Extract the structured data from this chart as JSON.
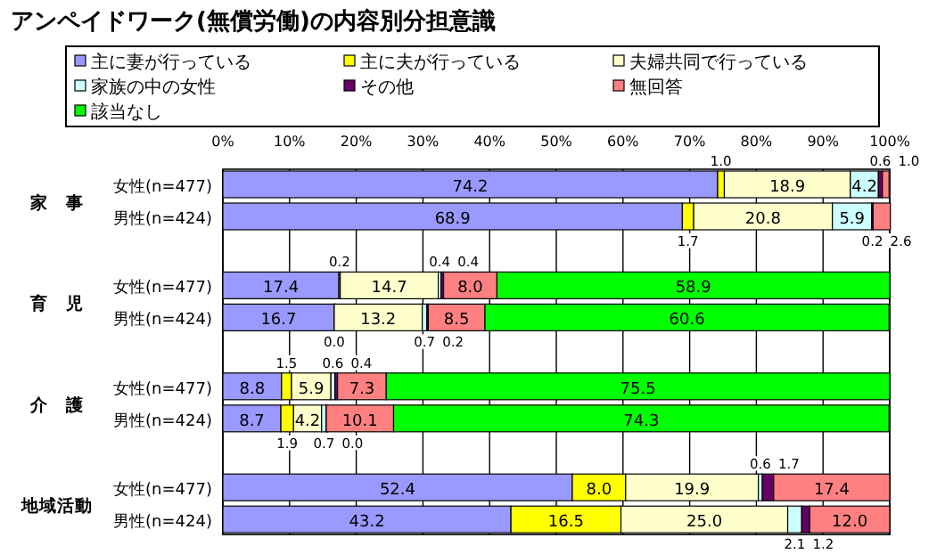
{
  "chart_data": {
    "type": "bar",
    "orientation": "horizontal",
    "stacked": true,
    "title": "アンペイドワーク(無償労働)の内容別分担意識",
    "categories": [
      "女性(n=477)",
      "男性(n=424)",
      "女性(n=477)",
      "男性(n=424)",
      "女性(n=477)",
      "男性(n=424)",
      "女性(n=477)",
      "男性(n=424)"
    ],
    "annotations": [
      "家　事",
      "育　児",
      "介　護",
      "地域活動"
    ],
    "xlim": [
      0,
      100
    ],
    "xticks": [
      {
        "value": 0,
        "label": "0%"
      },
      {
        "value": 10,
        "label": "10%"
      },
      {
        "value": 20,
        "label": "20%"
      },
      {
        "value": 30,
        "label": "30%"
      },
      {
        "value": 40,
        "label": "40%"
      },
      {
        "value": 50,
        "label": "50%"
      },
      {
        "value": 60,
        "label": "60%"
      },
      {
        "value": 70,
        "label": "70%"
      },
      {
        "value": 80,
        "label": "80%"
      },
      {
        "value": 90,
        "label": "90%"
      },
      {
        "value": 100,
        "label": "100%"
      }
    ],
    "grid": "x",
    "legend": "top",
    "series": [
      {
        "name": "主に妻が行っている",
        "color": "#9999ff",
        "values": [
          74.2,
          68.9,
          17.4,
          16.7,
          8.8,
          8.7,
          52.4,
          43.2
        ],
        "value_labels": [
          "74.2",
          "68.9",
          "17.4",
          "16.7",
          "8.8",
          "8.7",
          "52.4",
          "43.2"
        ]
      },
      {
        "name": "主に夫が行っている",
        "color": "#ffff00",
        "values": [
          1.0,
          1.7,
          0.2,
          0.0,
          1.5,
          1.9,
          8.0,
          16.5
        ],
        "value_labels": [
          "1.0",
          "1.7",
          "0.2",
          "0.0",
          "1.5",
          "1.9",
          "8.0",
          "16.5"
        ]
      },
      {
        "name": "夫婦共同で行っている",
        "color": "#ffffcc",
        "values": [
          18.9,
          20.8,
          14.7,
          13.2,
          5.9,
          4.2,
          19.9,
          25.0
        ],
        "value_labels": [
          "18.9",
          "20.8",
          "14.7",
          "13.2",
          "5.9",
          "4.2",
          "19.9",
          "25.0"
        ]
      },
      {
        "name": "家族の中の女性",
        "color": "#ccffff",
        "values": [
          4.2,
          5.9,
          0.4,
          0.7,
          0.6,
          0.7,
          0.6,
          2.1
        ],
        "value_labels": [
          "4.2",
          "5.9",
          "0.4",
          "0.7",
          "0.6",
          "0.7",
          "0.6",
          "2.1"
        ]
      },
      {
        "name": "その他",
        "color": "#660066",
        "values": [
          0.6,
          0.2,
          0.4,
          0.2,
          0.4,
          0.0,
          1.7,
          1.2
        ],
        "value_labels": [
          "0.6",
          "0.2",
          "0.4",
          "0.2",
          "0.4",
          "0.0",
          "1.7",
          "1.2"
        ]
      },
      {
        "name": "無回答",
        "color": "#ff8080",
        "values": [
          1.0,
          2.6,
          8.0,
          8.5,
          7.3,
          10.1,
          17.4,
          12.0
        ],
        "value_labels": [
          "1.0",
          "2.6",
          "8.0",
          "8.5",
          "7.3",
          "10.1",
          "17.4",
          "12.0"
        ]
      },
      {
        "name": "該当なし",
        "color": "#00ff00",
        "values": [
          null,
          null,
          58.9,
          60.6,
          75.5,
          74.3,
          null,
          null
        ],
        "value_labels": [
          null,
          null,
          "58.9",
          "60.6",
          "75.5",
          "74.3",
          null,
          null
        ]
      }
    ]
  }
}
